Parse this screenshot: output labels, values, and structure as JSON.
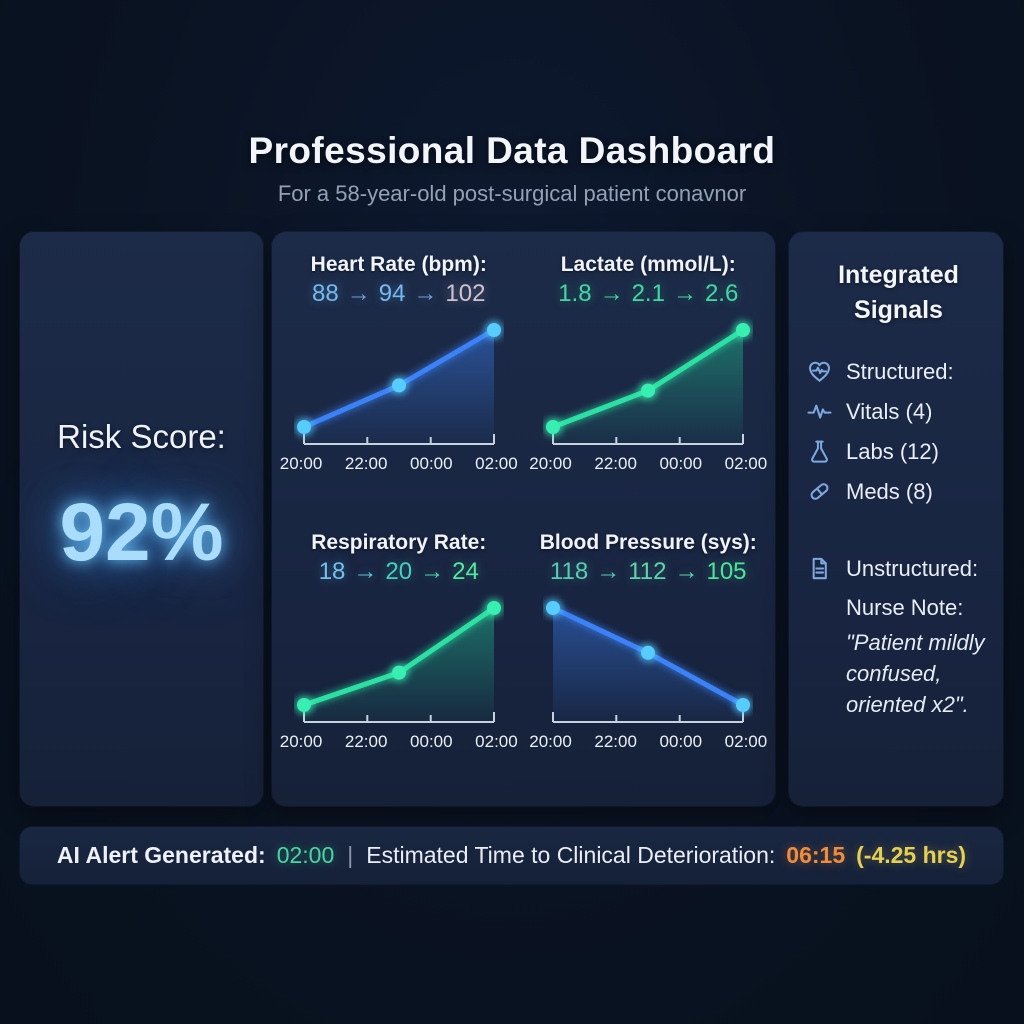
{
  "header": {
    "title": "Professional Data Dashboard",
    "subtitle": "For a 58-year-old post-surgical patient conavnor"
  },
  "risk": {
    "label": "Risk Score:",
    "value": "92%"
  },
  "chart_data": {
    "type": "line",
    "x_labels": [
      "20:00",
      "22:00",
      "00:00",
      "02:00"
    ],
    "legend_position": "none",
    "grid": false,
    "charts": [
      {
        "title": "Heart Rate (bpm):",
        "x": [
          "20:00",
          "23:00",
          "02:00"
        ],
        "values": [
          88,
          94,
          102
        ],
        "line_color": "#3b82f6",
        "dot_color": "#56ccff",
        "fill_color": "#3b82f6",
        "trend": [
          {
            "t": "88",
            "c": "#74b9ef"
          },
          {
            "t": "→",
            "c": "#6aa3d8"
          },
          {
            "t": "94",
            "c": "#74b9ef"
          },
          {
            "t": "→",
            "c": "#6aa3d8"
          },
          {
            "t": "102",
            "c": "#cfc3d2"
          }
        ]
      },
      {
        "title": "Lactate (mmol/L):",
        "x": [
          "20:00",
          "23:00",
          "02:00"
        ],
        "values": [
          1.8,
          2.1,
          2.6
        ],
        "line_color": "#2ce0a3",
        "dot_color": "#38efb2",
        "fill_color": "#21c896",
        "trend": [
          {
            "t": "1.8",
            "c": "#43d8a2"
          },
          {
            "t": "→",
            "c": "#43d8a2"
          },
          {
            "t": "2.1",
            "c": "#43d8a2"
          },
          {
            "t": "→",
            "c": "#43d8a2"
          },
          {
            "t": "2.6",
            "c": "#43d8a2"
          }
        ]
      },
      {
        "title": "Respiratory Rate:",
        "x": [
          "20:00",
          "23:00",
          "02:00"
        ],
        "values": [
          18,
          20,
          24
        ],
        "line_color": "#2ce0a3",
        "dot_color": "#38efb2",
        "fill_color": "#21c896",
        "trend": [
          {
            "t": "18",
            "c": "#6fc2f0"
          },
          {
            "t": "→",
            "c": "#5bc4d8"
          },
          {
            "t": "20",
            "c": "#45cfc0"
          },
          {
            "t": "→",
            "c": "#4dd8ab"
          },
          {
            "t": "24",
            "c": "#55e8a0"
          }
        ]
      },
      {
        "title": "Blood Pressure (sys):",
        "x": [
          "20:00",
          "23:00",
          "02:00"
        ],
        "values": [
          118,
          112,
          105
        ],
        "line_color": "#3b82f6",
        "dot_color": "#56ccff",
        "fill_color": "#3b82f6",
        "trend": [
          {
            "t": "118",
            "c": "#58cbb4"
          },
          {
            "t": "→",
            "c": "#58cbb4"
          },
          {
            "t": "112",
            "c": "#5fd4ae"
          },
          {
            "t": "→",
            "c": "#5fd4ae"
          },
          {
            "t": "105",
            "c": "#4ce49a"
          }
        ]
      }
    ]
  },
  "signals": {
    "title": "Integrated Signals",
    "structured": [
      {
        "icon": "heart-pulse-icon",
        "label": "Structured:"
      },
      {
        "icon": "waveform-icon",
        "label": "Vitals (4)"
      },
      {
        "icon": "flask-icon",
        "label": "Labs (12)"
      },
      {
        "icon": "pill-icon",
        "label": "Meds (8)"
      }
    ],
    "unstructured": {
      "icon": "document-icon",
      "label": "Unstructured:",
      "note_label": "Nurse Note:",
      "note_lines": [
        "\"Patient mildly",
        "confused,",
        "oriented x2\"."
      ]
    }
  },
  "alert": {
    "label1": "AI Alert Generated:",
    "time1": "02:00",
    "divider": "|",
    "label2": "Estimated Time to Clinical Deterioration:",
    "time2": "06:15",
    "delta": "(-4.25 hrs)"
  },
  "colors": {
    "background": "#0a1322",
    "panel": "#1a2740",
    "risk_glow": "#a9ddfb",
    "blue_line": "#3b82f6",
    "green_line": "#2ce0a3",
    "alert_green": "#49d6a0",
    "alert_orange": "#ef8d3d",
    "alert_yellow": "#e6d054",
    "icon_blue": "#7ea9e0"
  }
}
